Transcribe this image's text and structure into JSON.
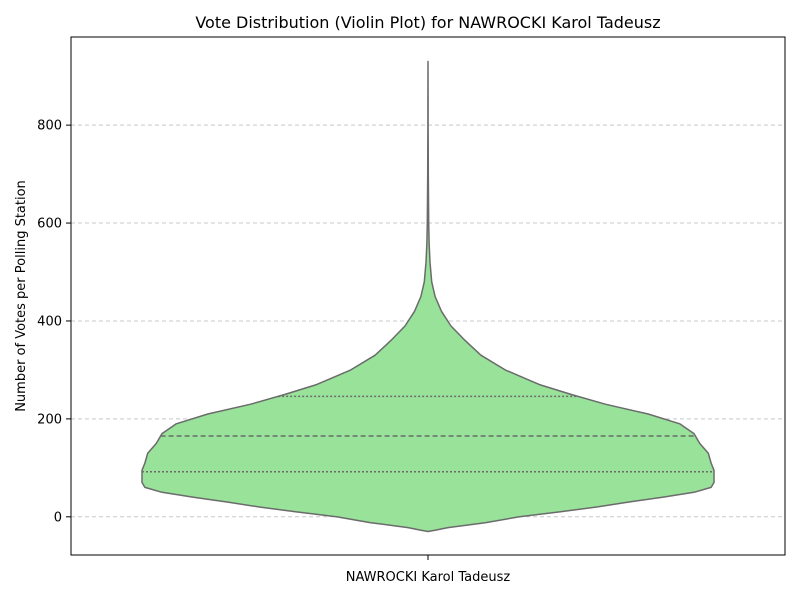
{
  "chart_data": {
    "type": "violin",
    "title": "Vote Distribution (Violin Plot) for NAWROCKI Karol Tadeusz",
    "xlabel": "",
    "ylabel": "Number of Votes per Polling Station",
    "categories": [
      "NAWROCKI Karol Tadeusz"
    ],
    "ylim": [
      -78,
      980
    ],
    "yticks": [
      0,
      200,
      400,
      600,
      800
    ],
    "grid": "y-dashed",
    "series": [
      {
        "category": "NAWROCKI Karol Tadeusz",
        "color": "#98e29a",
        "edge_color": "#6b6b6b",
        "quartiles": {
          "q1": 92,
          "median": 165,
          "q3": 246
        },
        "density_profile": [
          {
            "y": -30,
            "w": 0.0
          },
          {
            "y": -28,
            "w": 0.02
          },
          {
            "y": -22,
            "w": 0.07
          },
          {
            "y": -12,
            "w": 0.2
          },
          {
            "y": 0,
            "w": 0.32
          },
          {
            "y": 10,
            "w": 0.46
          },
          {
            "y": 20,
            "w": 0.59
          },
          {
            "y": 30,
            "w": 0.7
          },
          {
            "y": 40,
            "w": 0.82
          },
          {
            "y": 50,
            "w": 0.93
          },
          {
            "y": 60,
            "w": 0.99
          },
          {
            "y": 70,
            "w": 1.0
          },
          {
            "y": 80,
            "w": 1.0
          },
          {
            "y": 95,
            "w": 1.0
          },
          {
            "y": 110,
            "w": 0.99
          },
          {
            "y": 130,
            "w": 0.98
          },
          {
            "y": 150,
            "w": 0.95
          },
          {
            "y": 170,
            "w": 0.93
          },
          {
            "y": 190,
            "w": 0.88
          },
          {
            "y": 210,
            "w": 0.77
          },
          {
            "y": 230,
            "w": 0.62
          },
          {
            "y": 250,
            "w": 0.5
          },
          {
            "y": 270,
            "w": 0.39
          },
          {
            "y": 300,
            "w": 0.27
          },
          {
            "y": 330,
            "w": 0.185
          },
          {
            "y": 360,
            "w": 0.13
          },
          {
            "y": 390,
            "w": 0.08
          },
          {
            "y": 420,
            "w": 0.047
          },
          {
            "y": 450,
            "w": 0.025
          },
          {
            "y": 480,
            "w": 0.013
          },
          {
            "y": 520,
            "w": 0.007
          },
          {
            "y": 560,
            "w": 0.004
          },
          {
            "y": 600,
            "w": 0.0025
          },
          {
            "y": 650,
            "w": 0.0018
          },
          {
            "y": 700,
            "w": 0.0012
          },
          {
            "y": 760,
            "w": 0.0007
          },
          {
            "y": 800,
            "w": 0.0004
          },
          {
            "y": 850,
            "w": 0.0002
          },
          {
            "y": 930,
            "w": 0.0
          }
        ]
      }
    ]
  }
}
